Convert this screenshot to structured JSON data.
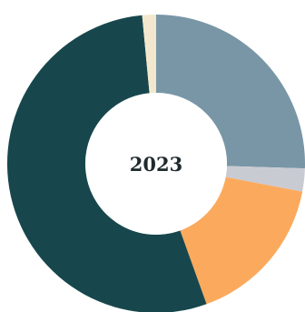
{
  "chart_data": {
    "type": "pie",
    "donut": true,
    "center_label": "2023",
    "slices": [
      {
        "value": 25.5,
        "color": "#7896a6"
      },
      {
        "value": 2.5,
        "color": "#c9cbd3"
      },
      {
        "value": 16.5,
        "color": "#fbaa5d"
      },
      {
        "value": 54.0,
        "color": "#17474d"
      },
      {
        "value": 1.5,
        "color": "#f3e8cd"
      }
    ],
    "legend": "none",
    "start_angle_degrees": 0,
    "direction": "clockwise"
  }
}
